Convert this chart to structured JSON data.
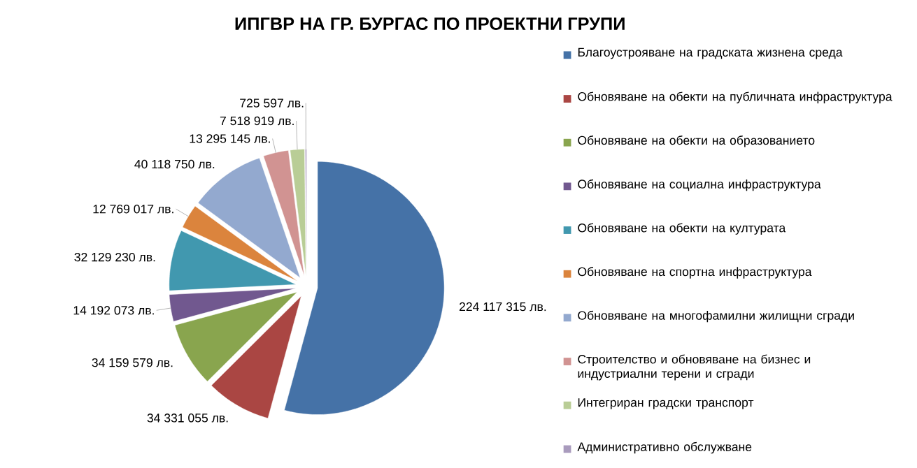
{
  "chart_data": {
    "type": "pie",
    "title": "ИПГВР НА ГР. БУРГАС ПО ПРОЕКТНИ ГРУПИ",
    "categories": [
      "Благоустрояване на градската жизнена среда",
      "Обновяване на обекти на публичната инфраструктура",
      "Обновяване на обекти на образованието",
      "Обновяване на социална инфраструктура",
      "Обновяване на обекти на културата",
      "Обновяване на спортна инфраструктура",
      "Обновяване на многофамилни жилищни сгради",
      "Строителство и обновяване на бизнес и индустриални терени и сгради",
      "Интегриран градски транспорт",
      "Административно обслужване"
    ],
    "values": [
      224117315,
      34331055,
      34159579,
      14192073,
      32129230,
      12769017,
      40118750,
      13295145,
      7518919,
      725597
    ],
    "value_labels": [
      "224 117 315 лв.",
      "34 331 055 лв.",
      "34 159 579 лв.",
      "14 192 073 лв.",
      "32 129 230 лв.",
      "12 769 017 лв.",
      "40 118 750 лв.",
      "13 295 145 лв.",
      "7 518 919 лв.",
      "725 597 лв."
    ],
    "colors": [
      "#4572a7",
      "#aa4643",
      "#89a54e",
      "#71588f",
      "#4198af",
      "#db843d",
      "#93a9cf",
      "#d19392",
      "#b9cd96",
      "#a99bbd"
    ],
    "legend": "right"
  }
}
